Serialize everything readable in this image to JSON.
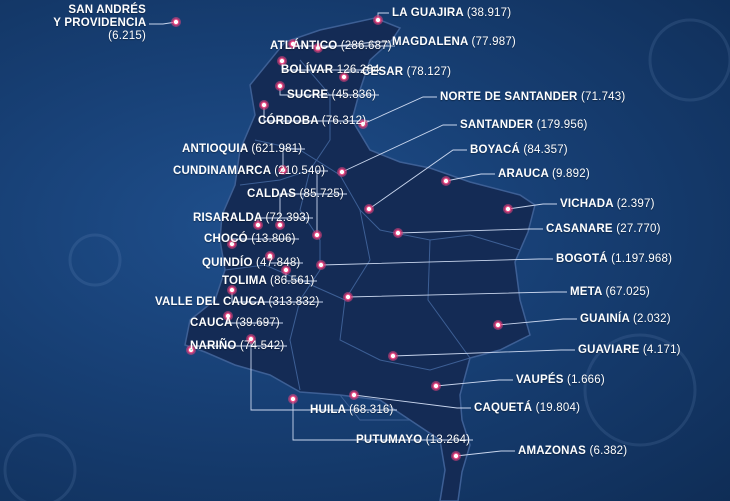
{
  "colors": {
    "background": "#173f74",
    "land": "#142b55",
    "border": "#3d5f95",
    "marker_fill": "#ffffff",
    "marker_ring": "#e8437e",
    "text": "#ffffff"
  },
  "regions": [
    {
      "id": "san-andres",
      "name": "SAN ANDRÉS",
      "name2": "Y PROVIDENCIA",
      "value": "(6.215)"
    },
    {
      "id": "la-guajira",
      "name": "LA GUAJIRA",
      "value": "(38.917)"
    },
    {
      "id": "atlantico",
      "name": "ATLÁNTICO",
      "value": "(286.687)"
    },
    {
      "id": "magdalena",
      "name": "MAGDALENA",
      "value": "(77.987)"
    },
    {
      "id": "bolivar",
      "name": "BOLÍVAR",
      "value": "126.264"
    },
    {
      "id": "cesar",
      "name": "CESAR",
      "value": "(78.127)"
    },
    {
      "id": "sucre",
      "name": "SUCRE",
      "value": "(45.836)"
    },
    {
      "id": "norte-de-santander",
      "name": "NORTE DE SANTANDER",
      "value": "(71.743)"
    },
    {
      "id": "cordoba",
      "name": "CÓRDOBA",
      "value": "(76.312)"
    },
    {
      "id": "santander",
      "name": "SANTANDER",
      "value": "(179.956)"
    },
    {
      "id": "antioquia",
      "name": "ANTIOQUIA",
      "value": "(621.981)"
    },
    {
      "id": "boyaca",
      "name": "BOYACÁ",
      "value": "(84.357)"
    },
    {
      "id": "cundinamarca",
      "name": "CUNDINAMARCA",
      "value": "(210.540)"
    },
    {
      "id": "arauca",
      "name": "ARAUCA",
      "value": "(9.892)"
    },
    {
      "id": "caldas",
      "name": "CALDAS",
      "value": "(85.725)"
    },
    {
      "id": "vichada",
      "name": "VICHADA",
      "value": "(2.397)"
    },
    {
      "id": "risaralda",
      "name": "RISARALDA",
      "value": "(72.393)"
    },
    {
      "id": "casanare",
      "name": "CASANARE",
      "value": "(27.770)"
    },
    {
      "id": "choco",
      "name": "CHOCÓ",
      "value": "(13.806)"
    },
    {
      "id": "quindio",
      "name": "QUINDÍO",
      "value": "(47.848)"
    },
    {
      "id": "bogota",
      "name": "BOGOTÁ",
      "value": "(1.197.968)"
    },
    {
      "id": "tolima",
      "name": "TOLIMA",
      "value": "(86.561)"
    },
    {
      "id": "valle-del-cauca",
      "name": "VALLE DEL CAUCA",
      "value": "(313.832)"
    },
    {
      "id": "meta",
      "name": "META",
      "value": "(67.025)"
    },
    {
      "id": "cauca",
      "name": "CAUCA",
      "value": "(39.697)"
    },
    {
      "id": "guainia",
      "name": "GUAINÍA",
      "value": "(2.032)"
    },
    {
      "id": "narino",
      "name": "NARIÑO",
      "value": "(74.542)"
    },
    {
      "id": "guaviare",
      "name": "GUAVIARE",
      "value": "(4.171)"
    },
    {
      "id": "vaupes",
      "name": "VAUPÉS",
      "value": "(1.666)"
    },
    {
      "id": "huila",
      "name": "HUILA",
      "value": "(68.316)"
    },
    {
      "id": "caqueta",
      "name": "CAQUETÁ",
      "value": "(19.804)"
    },
    {
      "id": "putumayo",
      "name": "PUTUMAYO",
      "value": "(13.264)"
    },
    {
      "id": "amazonas",
      "name": "AMAZONAS",
      "value": "(6.382)"
    }
  ]
}
